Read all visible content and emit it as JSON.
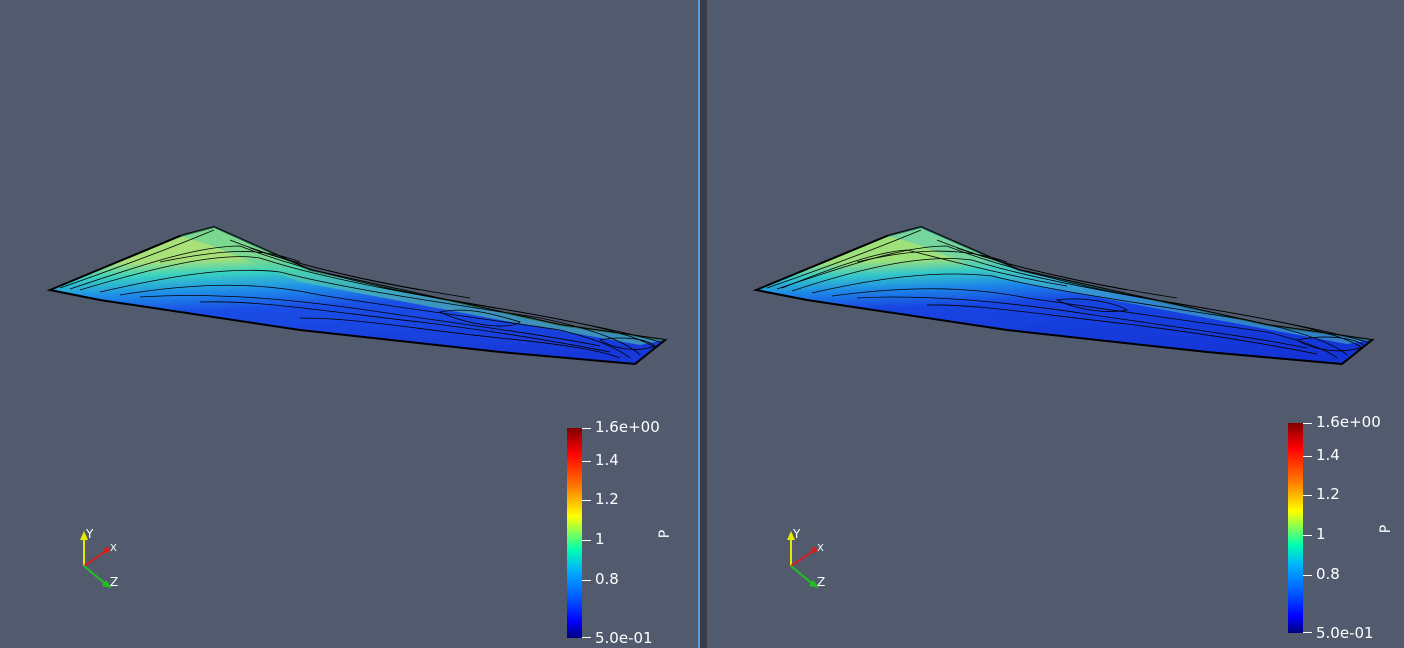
{
  "views": [
    {
      "id": "left",
      "colorbar": {
        "title": "P",
        "ticks": [
          "1.6e+00",
          "1.4",
          "1.2",
          "1",
          "0.8",
          "5.0e-01"
        ]
      },
      "axes": {
        "y": "Y",
        "x": "X",
        "z": "Z"
      }
    },
    {
      "id": "right",
      "colorbar": {
        "title": "P",
        "ticks": [
          "1.6e+00",
          "1.4",
          "1.2",
          "1",
          "0.8",
          "5.0e-01"
        ]
      },
      "axes": {
        "y": "Y",
        "x": "X",
        "z": "Z"
      }
    }
  ],
  "colors": {
    "background": "#525a6e",
    "active_border": "#4aa3e8"
  }
}
